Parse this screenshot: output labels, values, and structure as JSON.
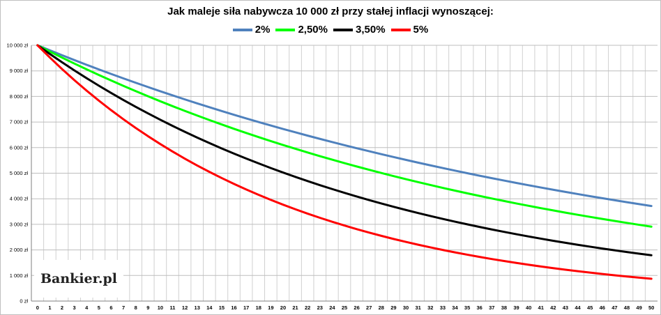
{
  "chart_data": {
    "type": "line",
    "title": "Jak maleje siła nabywcza 10 000 zł przy stałej inflacji wynoszącej:",
    "xlabel": "",
    "ylabel": "",
    "x": [
      0,
      1,
      2,
      3,
      4,
      5,
      6,
      7,
      8,
      9,
      10,
      11,
      12,
      13,
      14,
      15,
      16,
      17,
      18,
      19,
      20,
      21,
      22,
      23,
      24,
      25,
      26,
      27,
      28,
      29,
      30,
      31,
      32,
      33,
      34,
      35,
      36,
      37,
      38,
      39,
      40,
      41,
      42,
      43,
      44,
      45,
      46,
      47,
      48,
      49,
      50
    ],
    "ylim": [
      0,
      10000
    ],
    "y_ticks": [
      0,
      1000,
      2000,
      3000,
      4000,
      5000,
      6000,
      7000,
      8000,
      9000,
      10000
    ],
    "y_tick_labels": [
      "0 zł",
      "1 000 zł",
      "2 000 zł",
      "3 000 zł",
      "4 000 zł",
      "5 000 zł",
      "6 000 zł",
      "7 000 zł",
      "8 000 zł",
      "9 000 zł",
      "10 000 zł"
    ],
    "grid": true,
    "legend_position": "top",
    "series": [
      {
        "name": "2%",
        "color": "#4f81bd",
        "values": [
          10000,
          9804,
          9612,
          9423,
          9238,
          9057,
          8880,
          8706,
          8535,
          8368,
          8203,
          8043,
          7885,
          7730,
          7579,
          7430,
          7284,
          7142,
          7002,
          6864,
          6730,
          6598,
          6468,
          6342,
          6217,
          6095,
          5976,
          5859,
          5744,
          5631,
          5521,
          5412,
          5306,
          5202,
          5100,
          5000,
          4902,
          4806,
          4712,
          4619,
          4529,
          4440,
          4353,
          4268,
          4184,
          4102,
          4022,
          3943,
          3865,
          3790,
          3715
        ]
      },
      {
        "name": "2,50%",
        "color": "#00ff00",
        "values": [
          10000,
          9756,
          9518,
          9286,
          9060,
          8839,
          8623,
          8413,
          8207,
          8007,
          7812,
          7621,
          7436,
          7254,
          7077,
          6905,
          6736,
          6572,
          6412,
          6255,
          6103,
          5954,
          5809,
          5667,
          5529,
          5394,
          5262,
          5134,
          5009,
          4887,
          4767,
          4651,
          4538,
          4427,
          4319,
          4214,
          4111,
          4011,
          3913,
          3817,
          3724,
          3633,
          3545,
          3458,
          3374,
          3292,
          3211,
          3133,
          3057,
          2982,
          2909
        ]
      },
      {
        "name": "3,50%",
        "color": "#000000",
        "values": [
          10000,
          9662,
          9335,
          9019,
          8714,
          8420,
          8135,
          7860,
          7594,
          7337,
          7089,
          6849,
          6618,
          6394,
          6178,
          5969,
          5767,
          5572,
          5384,
          5202,
          5026,
          4856,
          4692,
          4533,
          4380,
          4231,
          4088,
          3950,
          3817,
          3687,
          3563,
          3442,
          3326,
          3213,
          3105,
          3000,
          2898,
          2800,
          2706,
          2614,
          2526,
          2440,
          2358,
          2278,
          2201,
          2127,
          2055,
          1985,
          1918,
          1853,
          1791
        ]
      },
      {
        "name": "5%",
        "color": "#ff0000",
        "values": [
          10000,
          9524,
          9070,
          8638,
          8227,
          7835,
          7462,
          7107,
          6768,
          6446,
          6139,
          5847,
          5568,
          5303,
          5051,
          4810,
          4581,
          4363,
          4155,
          3957,
          3769,
          3589,
          3418,
          3256,
          3101,
          2953,
          2812,
          2678,
          2551,
          2429,
          2314,
          2204,
          2099,
          1999,
          1904,
          1813,
          1727,
          1644,
          1566,
          1491,
          1420,
          1353,
          1288,
          1227,
          1169,
          1113,
          1060,
          1009,
          961,
          916,
          872
        ]
      }
    ]
  },
  "watermark": {
    "text": "Bankier.pl"
  }
}
